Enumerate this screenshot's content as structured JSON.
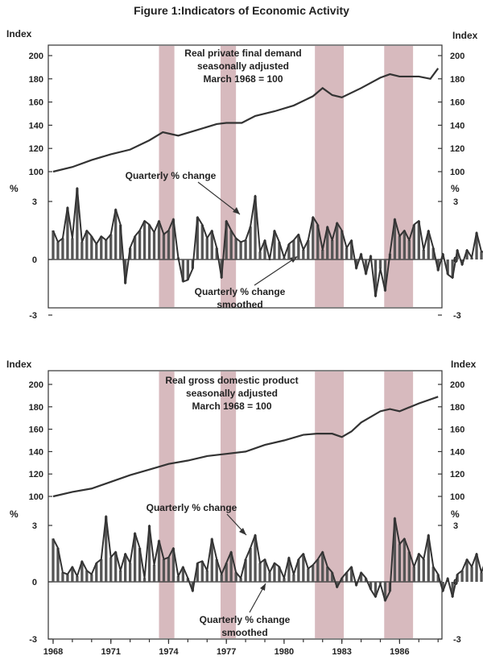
{
  "chart_data": {
    "type": "line",
    "title": "Figure 1:Indicators of Economic Activity",
    "shading_color": "#c9a3a8",
    "recession_bands": [
      [
        1973.5,
        1974.3
      ],
      [
        1976.7,
        1977.5
      ],
      [
        1981.6,
        1983.1
      ],
      [
        1985.2,
        1986.7
      ]
    ],
    "x_ticks": [
      "1968",
      "1971",
      "1974",
      "1977",
      "1980",
      "1983",
      "1986"
    ],
    "x_tick_values": [
      1968,
      1971,
      1974,
      1977,
      1980,
      1983,
      1986
    ],
    "xlim": [
      1967.75,
      1988.2
    ],
    "panels": [
      {
        "id": "real-private-final-demand",
        "level_label": "Index",
        "pct_label": "%",
        "level_ticks": [
          "200",
          "180",
          "160",
          "140",
          "120",
          "100"
        ],
        "level_tick_values": [
          200,
          180,
          160,
          140,
          120,
          100
        ],
        "level_ylim": [
          100,
          200
        ],
        "pct_ticks": [
          "3",
          "0",
          "-3"
        ],
        "pct_tick_values": [
          3,
          0,
          -3
        ],
        "pct_ylim": [
          -3,
          3
        ],
        "series_title": [
          "Real private final demand",
          "seasonally adjusted",
          "March 1968 = 100"
        ],
        "annotation_quarterly": "Quarterly % change",
        "annotation_smoothed": [
          "Quarterly % change",
          "smoothed"
        ],
        "level": {
          "x": [
            1968.0,
            1969.0,
            1970.0,
            1971.0,
            1972.0,
            1973.0,
            1973.7,
            1974.5,
            1975.5,
            1976.5,
            1977.0,
            1977.8,
            1978.5,
            1979.5,
            1980.5,
            1981.5,
            1982.0,
            1982.5,
            1983.0,
            1984.0,
            1985.0,
            1985.5,
            1986.0,
            1987.0,
            1987.6,
            1988.0
          ],
          "values": [
            100,
            104,
            110,
            115,
            119,
            127,
            134,
            131,
            136,
            141,
            142,
            142,
            148,
            152,
            157,
            165,
            172,
            166,
            164,
            172,
            181,
            184,
            182,
            182,
            180,
            189
          ]
        },
        "quarterly_change": [
          1.5,
          0.9,
          1.1,
          2.7,
          1.1,
          3.7,
          0.9,
          1.5,
          1.2,
          0.8,
          1.2,
          1.0,
          1.3,
          2.6,
          1.8,
          -1.3,
          0.6,
          1.2,
          1.5,
          2.0,
          1.8,
          1.4,
          2.0,
          1.3,
          1.5,
          2.1,
          0.1,
          -1.2,
          -1.1,
          -0.5,
          2.2,
          1.8,
          1.1,
          1.5,
          0.6,
          -1.0,
          2.0,
          1.5,
          1.1,
          0.9,
          1.0,
          1.7,
          3.3,
          0.4,
          1.0,
          0.0,
          1.5,
          0.9,
          0.1,
          0.8,
          1.0,
          1.3,
          0.5,
          1.0,
          2.2,
          1.8,
          0.5,
          1.7,
          1.0,
          1.9,
          1.5,
          0.6,
          1.0,
          -0.5,
          0.3,
          -0.8,
          0.2,
          -2.0,
          -0.5,
          -1.7,
          0.3,
          2.1,
          1.2,
          1.5,
          1.0,
          1.8,
          2.0,
          0.5,
          1.5,
          0.6,
          -0.6,
          0.3,
          -0.8,
          -1.0,
          0.5,
          -0.3,
          0.5,
          0.1,
          1.4,
          0.4,
          0.4,
          1.8,
          1.5
        ],
        "smoothed": [
          1.1,
          1.2,
          1.5,
          1.6,
          1.8,
          1.7,
          1.5,
          1.3,
          1.2,
          1.2,
          1.3,
          1.5,
          1.6,
          1.6,
          1.4,
          1.0,
          0.8,
          0.9,
          1.1,
          1.5,
          1.7,
          1.6,
          1.5,
          1.4,
          1.3,
          1.1,
          0.6,
          0.0,
          -0.4,
          -0.3,
          0.3,
          0.8,
          1.0,
          0.9,
          0.6,
          0.5,
          0.8,
          1.1,
          1.1,
          1.0,
          1.0,
          1.3,
          1.5,
          1.2,
          0.9,
          0.6,
          0.7,
          0.7,
          0.6,
          0.7,
          0.8,
          0.9,
          0.9,
          1.0,
          1.4,
          1.5,
          1.3,
          1.3,
          1.2,
          1.3,
          1.2,
          1.0,
          0.8,
          0.5,
          0.3,
          0.0,
          -0.3,
          -0.7,
          -0.8,
          -0.6,
          -0.1,
          0.6,
          1.1,
          1.3,
          1.3,
          1.5,
          1.5,
          1.3,
          1.1,
          0.8,
          0.4,
          0.1,
          -0.2,
          -0.3,
          -0.2,
          -0.1,
          0.1,
          0.2,
          0.5,
          0.6,
          0.7,
          1.0,
          1.2
        ]
      },
      {
        "id": "real-gross-domestic-product",
        "level_label": "Index",
        "pct_label": "%",
        "level_ticks": [
          "200",
          "180",
          "160",
          "140",
          "120",
          "100"
        ],
        "level_tick_values": [
          200,
          180,
          160,
          140,
          120,
          100
        ],
        "level_ylim": [
          100,
          200
        ],
        "pct_ticks": [
          "3",
          "0",
          "-3"
        ],
        "pct_tick_values": [
          3,
          0,
          -3
        ],
        "pct_ylim": [
          -3,
          3
        ],
        "series_title": [
          "Real gross domestic product",
          "seasonally adjusted",
          "March 1968 = 100"
        ],
        "annotation_quarterly": "Quarterly % change",
        "annotation_smoothed": [
          "Quarterly % change",
          "smoothed"
        ],
        "level": {
          "x": [
            1968.0,
            1969.0,
            1970.0,
            1971.0,
            1972.0,
            1973.0,
            1974.0,
            1975.0,
            1976.0,
            1977.0,
            1978.0,
            1979.0,
            1980.0,
            1981.0,
            1981.7,
            1982.5,
            1983.0,
            1983.5,
            1984.0,
            1985.0,
            1985.5,
            1986.0,
            1987.0,
            1988.0
          ],
          "values": [
            100,
            104,
            107,
            113,
            119,
            124,
            129,
            132,
            136,
            138,
            140,
            146,
            150,
            155,
            156,
            156,
            153,
            158,
            166,
            176,
            178,
            176,
            183,
            189
          ]
        },
        "quarterly_change": [
          2.3,
          1.8,
          0.5,
          0.4,
          0.8,
          0.3,
          1.1,
          0.6,
          0.4,
          1.0,
          1.2,
          3.5,
          1.3,
          1.6,
          0.6,
          1.5,
          1.0,
          2.6,
          1.8,
          0.2,
          3.0,
          0.9,
          2.2,
          1.2,
          1.3,
          1.8,
          0.3,
          0.8,
          0.2,
          -0.5,
          1.0,
          1.1,
          0.6,
          2.3,
          1.2,
          0.4,
          1.0,
          1.6,
          0.5,
          0.2,
          1.2,
          1.8,
          2.5,
          1.0,
          1.2,
          0.5,
          1.0,
          0.8,
          0.2,
          1.3,
          0.4,
          1.2,
          1.5,
          0.7,
          0.9,
          1.2,
          1.6,
          0.8,
          0.5,
          -0.3,
          0.2,
          0.5,
          0.8,
          -0.2,
          0.5,
          0.2,
          -0.4,
          -0.8,
          -0.1,
          -1.0,
          -0.5,
          3.4,
          2.0,
          2.3,
          1.6,
          0.8,
          1.5,
          1.2,
          2.5,
          0.8,
          0.4,
          -0.5,
          0.2,
          -0.8,
          0.4,
          0.6,
          1.2,
          0.8,
          1.5,
          0.5,
          1.2,
          -0.1,
          1.4
        ],
        "smoothed": [
          1.5,
          1.4,
          1.1,
          0.8,
          0.7,
          0.6,
          0.7,
          0.8,
          0.8,
          1.0,
          1.2,
          1.6,
          1.6,
          1.5,
          1.3,
          1.3,
          1.4,
          1.6,
          1.5,
          1.3,
          1.5,
          1.5,
          1.5,
          1.3,
          1.2,
          1.1,
          0.8,
          0.6,
          0.3,
          0.1,
          0.3,
          0.6,
          0.8,
          1.0,
          1.0,
          0.9,
          0.9,
          1.0,
          0.9,
          0.8,
          0.9,
          1.2,
          1.5,
          1.4,
          1.2,
          1.0,
          0.9,
          0.9,
          0.7,
          0.8,
          0.8,
          0.9,
          1.0,
          1.0,
          1.0,
          1.1,
          1.2,
          1.0,
          0.8,
          0.4,
          0.3,
          0.3,
          0.3,
          0.2,
          0.2,
          0.1,
          -0.1,
          -0.3,
          -0.4,
          -0.5,
          -0.3,
          0.5,
          1.2,
          1.6,
          1.5,
          1.3,
          1.2,
          1.3,
          1.5,
          1.2,
          0.8,
          0.3,
          0.1,
          -0.1,
          0.1,
          0.4,
          0.7,
          0.8,
          1.0,
          0.9,
          0.9,
          0.7,
          0.9
        ]
      }
    ]
  }
}
